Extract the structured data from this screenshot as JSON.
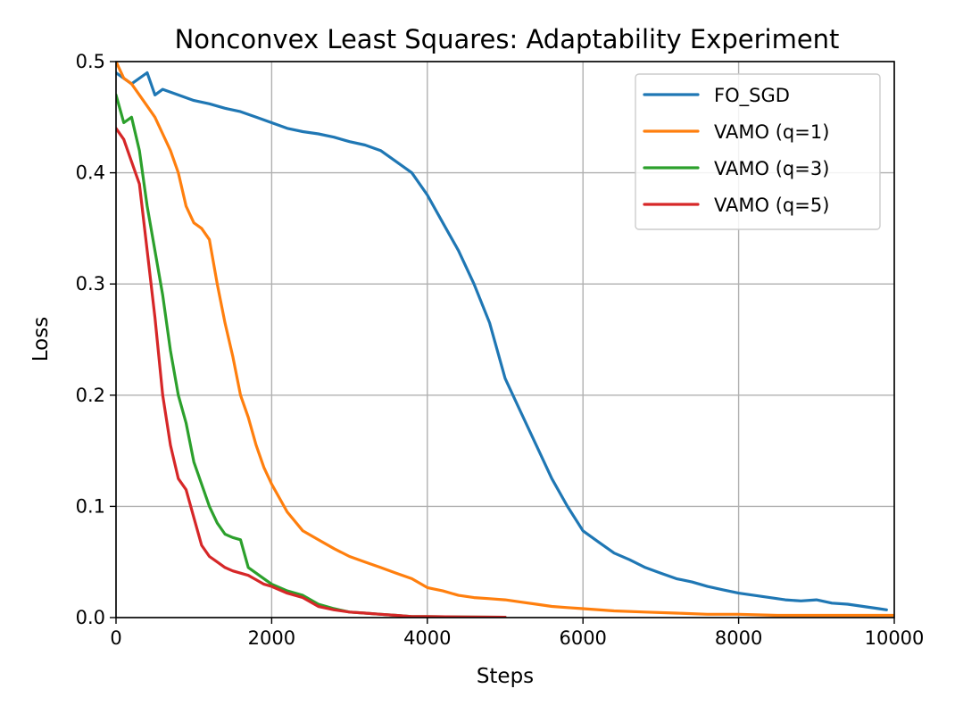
{
  "chart_data": {
    "type": "line",
    "title": "Nonconvex Least Squares: Adaptability Experiment",
    "xlabel": "Steps",
    "ylabel": "Loss",
    "xlim": [
      0,
      10000
    ],
    "ylim": [
      0.0,
      0.5
    ],
    "xticks": [
      0,
      2000,
      4000,
      6000,
      8000,
      10000
    ],
    "xtick_labels": [
      "0",
      "2000",
      "4000",
      "6000",
      "8000",
      "10000"
    ],
    "yticks": [
      0.0,
      0.1,
      0.2,
      0.3,
      0.4,
      0.5
    ],
    "ytick_labels": [
      "0.0",
      "0.1",
      "0.2",
      "0.3",
      "0.4",
      "0.5"
    ],
    "grid": true,
    "legend_position": "top-right",
    "series": [
      {
        "name": "FO_SGD",
        "color": "#1f77b4",
        "x": [
          0,
          200,
          400,
          500,
          600,
          800,
          1000,
          1200,
          1400,
          1600,
          1800,
          2000,
          2200,
          2400,
          2600,
          2800,
          3000,
          3200,
          3400,
          3600,
          3800,
          4000,
          4200,
          4400,
          4600,
          4800,
          5000,
          5200,
          5400,
          5600,
          5800,
          6000,
          6200,
          6400,
          6600,
          6800,
          7000,
          7200,
          7400,
          7600,
          7800,
          8000,
          8200,
          8400,
          8600,
          8800,
          9000,
          9200,
          9400,
          9600,
          9800,
          9900
        ],
        "values": [
          0.49,
          0.48,
          0.49,
          0.47,
          0.475,
          0.47,
          0.465,
          0.462,
          0.458,
          0.455,
          0.45,
          0.445,
          0.44,
          0.437,
          0.435,
          0.432,
          0.428,
          0.425,
          0.42,
          0.41,
          0.4,
          0.38,
          0.355,
          0.33,
          0.3,
          0.265,
          0.215,
          0.185,
          0.155,
          0.125,
          0.1,
          0.078,
          0.068,
          0.058,
          0.052,
          0.045,
          0.04,
          0.035,
          0.032,
          0.028,
          0.025,
          0.022,
          0.02,
          0.018,
          0.016,
          0.015,
          0.016,
          0.013,
          0.012,
          0.01,
          0.008,
          0.007
        ]
      },
      {
        "name": "VAMO (q=1)",
        "color": "#ff7f0e",
        "x": [
          0,
          100,
          200,
          300,
          400,
          500,
          600,
          700,
          800,
          900,
          1000,
          1100,
          1200,
          1300,
          1400,
          1500,
          1600,
          1700,
          1800,
          1900,
          2000,
          2200,
          2400,
          2600,
          2800,
          3000,
          3200,
          3400,
          3600,
          3800,
          4000,
          4200,
          4400,
          4600,
          4800,
          5000,
          5200,
          5400,
          5600,
          5800,
          6000,
          6400,
          6800,
          7200,
          7600,
          8000,
          8500,
          9000,
          9500,
          10000
        ],
        "values": [
          0.5,
          0.485,
          0.48,
          0.47,
          0.46,
          0.45,
          0.435,
          0.42,
          0.4,
          0.37,
          0.355,
          0.35,
          0.34,
          0.3,
          0.265,
          0.235,
          0.2,
          0.18,
          0.155,
          0.135,
          0.12,
          0.095,
          0.078,
          0.07,
          0.062,
          0.055,
          0.05,
          0.045,
          0.04,
          0.035,
          0.027,
          0.024,
          0.02,
          0.018,
          0.017,
          0.016,
          0.014,
          0.012,
          0.01,
          0.009,
          0.008,
          0.006,
          0.005,
          0.004,
          0.003,
          0.003,
          0.002,
          0.002,
          0.002,
          0.002
        ]
      },
      {
        "name": "VAMO (q=3)",
        "color": "#2ca02c",
        "x": [
          0,
          100,
          200,
          300,
          400,
          500,
          600,
          700,
          800,
          900,
          1000,
          1100,
          1200,
          1300,
          1400,
          1500,
          1600,
          1700,
          1800,
          1900,
          2000,
          2200,
          2400,
          2600,
          2800,
          3000,
          3200,
          3400,
          3600,
          3800,
          4000,
          4500,
          5000
        ],
        "values": [
          0.47,
          0.445,
          0.45,
          0.42,
          0.37,
          0.33,
          0.29,
          0.24,
          0.2,
          0.175,
          0.14,
          0.12,
          0.1,
          0.085,
          0.075,
          0.072,
          0.07,
          0.045,
          0.04,
          0.035,
          0.03,
          0.024,
          0.02,
          0.012,
          0.008,
          0.005,
          0.004,
          0.003,
          0.002,
          0.001,
          0.001,
          0.0005,
          0.0003
        ]
      },
      {
        "name": "VAMO (q=5)",
        "color": "#d62728",
        "x": [
          0,
          100,
          200,
          300,
          400,
          500,
          600,
          700,
          800,
          900,
          1000,
          1100,
          1200,
          1300,
          1400,
          1500,
          1600,
          1700,
          1800,
          1900,
          2000,
          2200,
          2400,
          2600,
          2800,
          3000,
          3200,
          3400,
          3600,
          3800,
          4000,
          4500,
          5000
        ],
        "values": [
          0.44,
          0.43,
          0.41,
          0.39,
          0.33,
          0.27,
          0.2,
          0.155,
          0.125,
          0.115,
          0.09,
          0.065,
          0.055,
          0.05,
          0.045,
          0.042,
          0.04,
          0.038,
          0.034,
          0.03,
          0.028,
          0.022,
          0.018,
          0.01,
          0.007,
          0.005,
          0.004,
          0.003,
          0.002,
          0.001,
          0.001,
          0.0005,
          0.0003
        ]
      }
    ]
  }
}
